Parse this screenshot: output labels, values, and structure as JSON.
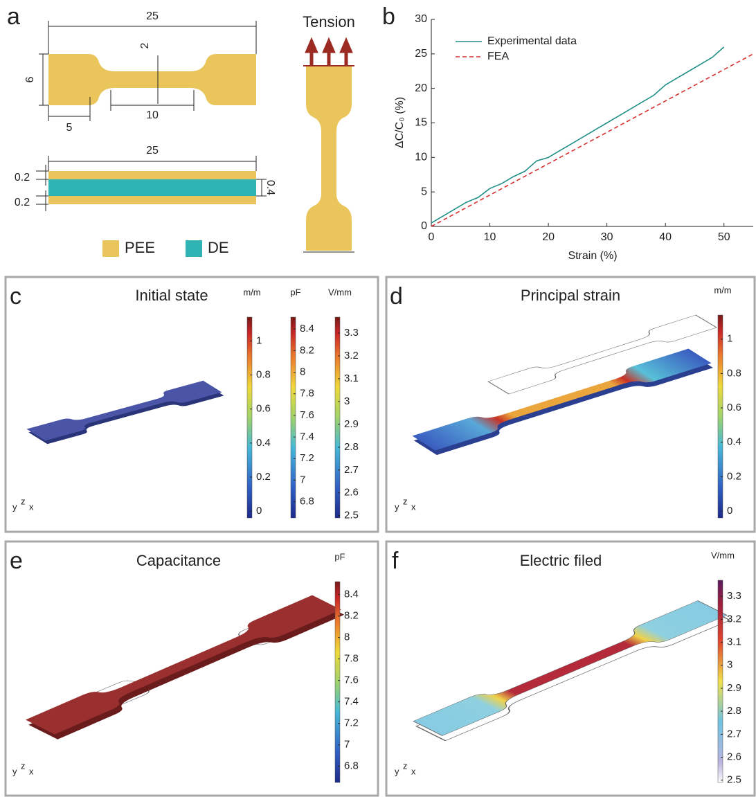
{
  "panels": {
    "a": {
      "label": "a",
      "dimensions": {
        "length": "25",
        "gauge_width": "2",
        "width": "6",
        "gauge_length": "10",
        "grip_length": "5",
        "layer_length": "25",
        "top_layer": "0.2",
        "middle_layer": "0.4",
        "bottom_layer": "0.2"
      },
      "tension": "Tension",
      "legend": [
        "PEE",
        "DE"
      ]
    },
    "b": {
      "label": "b"
    },
    "c": {
      "label": "c",
      "title": "Initial state",
      "axes": [
        "y",
        "z",
        "x"
      ],
      "colorbars": [
        {
          "unit": "m/m",
          "lim": [
            -0.04,
            1.14
          ],
          "ticks": [
            0,
            0.2,
            0.4,
            0.6,
            0.8,
            1
          ]
        },
        {
          "unit": "pF",
          "lim": [
            6.65,
            8.51
          ],
          "ticks": [
            6.8,
            7,
            7.2,
            7.4,
            7.6,
            7.8,
            8,
            8.2,
            8.4
          ]
        },
        {
          "unit": "V/mm",
          "lim": [
            2.49,
            3.37
          ],
          "ticks": [
            2.5,
            2.6,
            2.7,
            2.8,
            2.9,
            3,
            3.1,
            3.2,
            3.3
          ]
        }
      ]
    },
    "d": {
      "label": "d",
      "title": "Principal strain",
      "axes": [
        "y",
        "z",
        "x"
      ],
      "colorbars": [
        {
          "unit": "m/m",
          "lim": [
            -0.04,
            1.14
          ],
          "ticks": [
            0,
            0.2,
            0.4,
            0.6,
            0.8,
            1
          ]
        }
      ]
    },
    "e": {
      "label": "e",
      "title": "Capacitance",
      "axes": [
        "y",
        "z",
        "x"
      ],
      "colorbars": [
        {
          "unit": "pF",
          "lim": [
            6.65,
            8.52
          ],
          "ticks": [
            6.8,
            7,
            7.2,
            7.4,
            7.6,
            7.8,
            8,
            8.2,
            8.4
          ]
        }
      ]
    },
    "f": {
      "label": "f",
      "title": "Electric filed",
      "axes": [
        "y",
        "z",
        "x"
      ],
      "colorbars": [
        {
          "unit": "V/mm",
          "lim": [
            2.49,
            3.37
          ],
          "ticks": [
            2.5,
            2.6,
            2.7,
            2.8,
            2.9,
            3,
            3.1,
            3.2,
            3.3
          ]
        }
      ]
    }
  },
  "chart_data": {
    "type": "line",
    "xlabel": "Strain (%)",
    "ylabel": "ΔC/C₀ (%)",
    "xlim": [
      0,
      55
    ],
    "xticks": [
      0,
      10,
      20,
      30,
      40,
      50
    ],
    "ylim": [
      0,
      30
    ],
    "yticks": [
      0,
      5,
      10,
      15,
      20,
      25,
      30
    ],
    "legend": "top-left",
    "series": [
      {
        "name": "Experimental data",
        "color": "#1f8f87",
        "dash": false,
        "x": [
          0,
          2,
          4,
          6,
          8,
          10,
          12,
          14,
          16,
          18,
          20,
          22,
          24,
          26,
          28,
          30,
          32,
          34,
          36,
          38,
          40,
          42,
          44,
          46,
          48,
          50
        ],
        "values": [
          0.5,
          1.5,
          2.5,
          3.5,
          4.2,
          5.5,
          6.2,
          7.2,
          8.0,
          9.5,
          10.0,
          11.0,
          12.0,
          13.0,
          14.0,
          15.0,
          16.0,
          17.0,
          18.0,
          19.0,
          20.5,
          21.5,
          22.5,
          23.5,
          24.5,
          26.0
        ]
      },
      {
        "name": "FEA",
        "color": "#d62f2f",
        "dash": true,
        "x": [
          0,
          55
        ],
        "values": [
          0,
          25
        ]
      }
    ]
  }
}
